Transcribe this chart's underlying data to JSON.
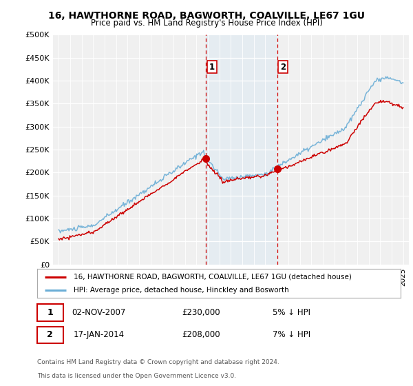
{
  "title": "16, HAWTHORNE ROAD, BAGWORTH, COALVILLE, LE67 1GU",
  "subtitle": "Price paid vs. HM Land Registry's House Price Index (HPI)",
  "ylabel_ticks": [
    "£0",
    "£50K",
    "£100K",
    "£150K",
    "£200K",
    "£250K",
    "£300K",
    "£350K",
    "£400K",
    "£450K",
    "£500K"
  ],
  "ytick_values": [
    0,
    50000,
    100000,
    150000,
    200000,
    250000,
    300000,
    350000,
    400000,
    450000,
    500000
  ],
  "xlim_start": 1994.5,
  "xlim_end": 2025.5,
  "ylim_min": 0,
  "ylim_max": 500000,
  "sale1_date": 2007.84,
  "sale1_price": 230000,
  "sale1_label": "1",
  "sale2_date": 2014.04,
  "sale2_price": 208000,
  "sale2_label": "2",
  "hpi_color": "#6baed6",
  "price_color": "#cc0000",
  "shade_color": "#d6e8f5",
  "vline_color": "#cc0000",
  "legend_line1": "16, HAWTHORNE ROAD, BAGWORTH, COALVILLE, LE67 1GU (detached house)",
  "legend_line2": "HPI: Average price, detached house, Hinckley and Bosworth",
  "table_row1": [
    "1",
    "02-NOV-2007",
    "£230,000",
    "5% ↓ HPI"
  ],
  "table_row2": [
    "2",
    "17-JAN-2014",
    "£208,000",
    "7% ↓ HPI"
  ],
  "footer": "Contains HM Land Registry data © Crown copyright and database right 2024.\nThis data is licensed under the Open Government Licence v3.0.",
  "bg_color": "#ffffff",
  "plot_bg_color": "#f0f0f0"
}
